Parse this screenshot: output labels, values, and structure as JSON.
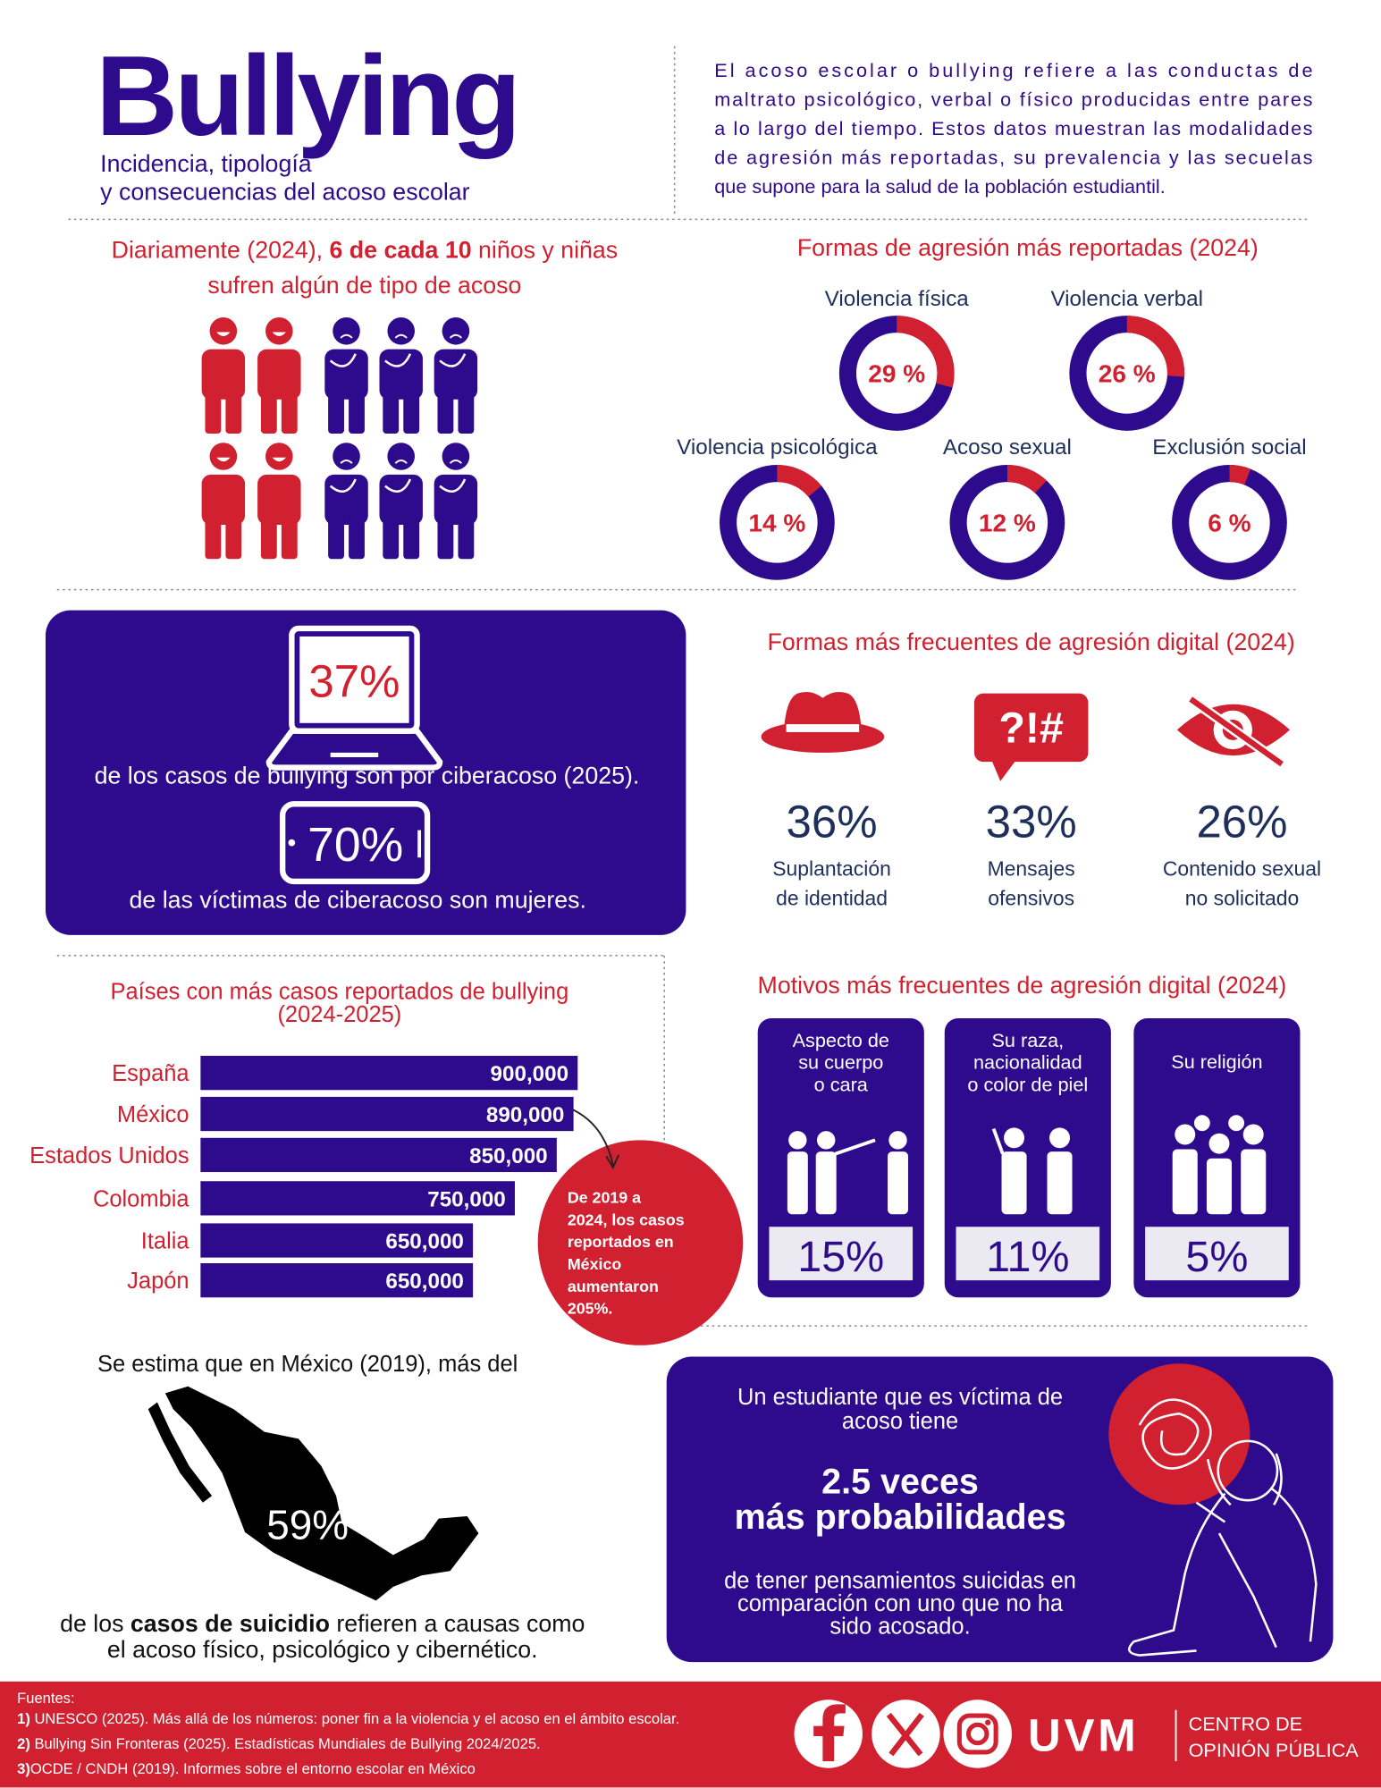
{
  "header": {
    "title": "Bullying",
    "subtitle": [
      "Incidencia, tipología",
      "y consecuencias del acoso escolar"
    ],
    "intro": [
      "El acoso escolar o bullying refiere a las conductas de",
      "maltrato psicológico, verbal o físico producidas entre pares",
      "a lo largo del tiempo. Estos datos muestran las modalidades",
      "de agresión más reportadas, su prevalencia y las secuelas",
      "que supone para la salud de la población estudiantil."
    ]
  },
  "daily": {
    "text": [
      "Diariamente (2024), ",
      "6 de cada 10",
      " niños y niñas"
    ],
    "text2": "sufren algún de tipo de acoso",
    "highlighted": 6,
    "total": 10
  },
  "aggression": {
    "type": "donut",
    "title": "Formas de agresión más reportadas (2024)",
    "items": [
      {
        "label": "Violencia física",
        "value": 29,
        "value_label": "29 %"
      },
      {
        "label": "Violencia verbal",
        "value": 26,
        "value_label": "26 %"
      },
      {
        "label": "Violencia psicológica",
        "value": 14,
        "value_label": "14 %"
      },
      {
        "label": "Acoso sexual",
        "value": 12,
        "value_label": "12 %"
      },
      {
        "label": "Exclusión social",
        "value": 6,
        "value_label": "6 %"
      }
    ]
  },
  "cyber": {
    "items": [
      {
        "value": "37%",
        "text": "de los casos de bullying son por ciberacoso (2025)."
      },
      {
        "value": "70%",
        "text": "de las víctimas de ciberacoso son mujeres."
      }
    ]
  },
  "digital": {
    "title": "Formas más frecuentes de agresión digital (2024)",
    "icon_text": "?!#",
    "items": [
      {
        "value": "36%",
        "label": [
          "Suplantación",
          "de identidad"
        ]
      },
      {
        "value": "33%",
        "label": [
          "Mensajes",
          "ofensivos"
        ]
      },
      {
        "value": "26%",
        "label": [
          "Contenido sexual",
          "no solicitado"
        ]
      }
    ]
  },
  "countries": {
    "type": "bar",
    "title": [
      "Países con más casos reportados de bullying",
      "(2024-2025)"
    ],
    "categories": [
      "España",
      "México",
      "Estados Unidos",
      "Colombia",
      "Italia",
      "Japón"
    ],
    "values": [
      900000,
      890000,
      850000,
      750000,
      650000,
      650000
    ],
    "value_labels": [
      "900,000",
      "890,000",
      "850,000",
      "750,000",
      "650,000",
      "650,000"
    ],
    "color": "#2d0b8c",
    "annotation": [
      "De 2019 a",
      "2024, los casos",
      "reportados en",
      "México",
      "aumentaron",
      "205%."
    ]
  },
  "motives": {
    "title": "Motivos más frecuentes de agresión digital (2024)",
    "items": [
      {
        "label": [
          "Aspecto de",
          "su cuerpo",
          "o cara"
        ],
        "value": "15%"
      },
      {
        "label": [
          "Su raza,",
          "nacionalidad",
          "o color de piel"
        ],
        "value": "11%"
      },
      {
        "label": [
          "Su religión"
        ],
        "value": "5%"
      }
    ]
  },
  "suicide": {
    "intro": "Se estima que en México (2019), más del",
    "value": "59%",
    "text": [
      "de los ",
      "casos de suicidio",
      " refieren a causas como"
    ],
    "text2": "el acoso físico, psicológico y cibernético."
  },
  "risk": {
    "intro": [
      "Un estudiante que es víctima de",
      "acoso tiene"
    ],
    "highlight": [
      "2.5 veces",
      "más probabilidades"
    ],
    "text": [
      "de tener pensamientos suicidas en",
      "comparación con uno que no ha",
      "sido acosado."
    ]
  },
  "footer": {
    "sources_title": "Fuentes:",
    "sources": [
      {
        "number": "1)",
        "text": " UNESCO (2025). Más allá de los números: poner fin a la violencia y el acoso en el ámbito escolar."
      },
      {
        "number": "2)",
        "text": " Bullying Sin Fronteras (2025). Estadísticas Mundiales de Bullying 2024/2025."
      },
      {
        "number": "3)",
        "text": "OCDE / CNDH (2019). Informes sobre el entorno escolar en México"
      }
    ],
    "brand": "UVM",
    "unit": [
      "CENTRO DE",
      "OPINIÓN PÚBLICA"
    ]
  }
}
